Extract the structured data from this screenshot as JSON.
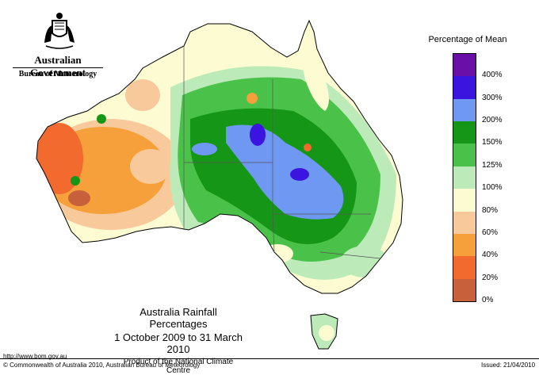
{
  "header": {
    "government": "Australian Government",
    "bureau": "Bureau of Meteorology",
    "crest_icon": "coat-of-arms-icon"
  },
  "map": {
    "title": "Australia Rainfall Percentages",
    "period": "1 October 2009 to 31 March 2010",
    "producer": "Product of the National Climate Centre"
  },
  "legend": {
    "title": "Percentage of Mean",
    "bands": [
      {
        "label": "400%",
        "color": "#6a0fa8"
      },
      {
        "label": "300%",
        "color": "#3c14e0"
      },
      {
        "label": "200%",
        "color": "#6f98f2"
      },
      {
        "label": "150%",
        "color": "#169616"
      },
      {
        "label": "125%",
        "color": "#4ac24a"
      },
      {
        "label": "100%",
        "color": "#bdeab9"
      },
      {
        "label": "80%",
        "color": "#fdfbd2"
      },
      {
        "label": "60%",
        "color": "#f8c99a"
      },
      {
        "label": "40%",
        "color": "#f5a03a"
      },
      {
        "label": "20%",
        "color": "#f26a2e"
      },
      {
        "label": "0%",
        "color": "#c9603c"
      }
    ]
  },
  "footer": {
    "url": "http://www.bom.gov.au",
    "copyright": "© Commonwealth of Australia 2010, Australian Bureau of Meteorology",
    "issued": "Issued: 21/04/2010"
  }
}
